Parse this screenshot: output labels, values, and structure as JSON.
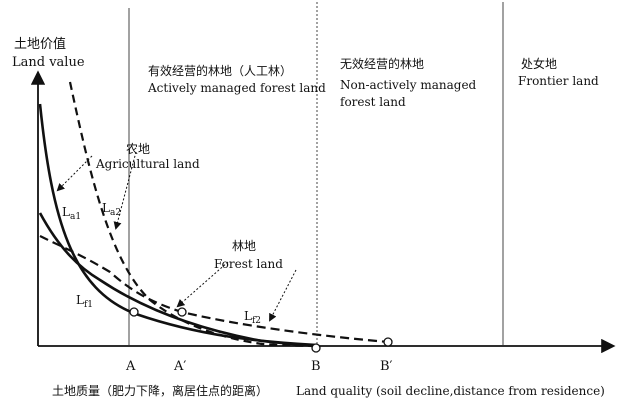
{
  "yaxis": {
    "label_cn": "土地价值",
    "label_en": "Land value"
  },
  "xaxis": {
    "label_cn": "土地质量（肥力下降，离居住点的距离）",
    "label_en": "Land quality (soil decline,distance from residence)"
  },
  "ticks": {
    "A": "A",
    "A_prime": "A′",
    "B": "B",
    "B_prime": "B′"
  },
  "zones": {
    "active": {
      "cn": "有效经营的林地（人工林）",
      "en": "Actively managed forest land"
    },
    "nonactive": {
      "cn": "无效经营的林地",
      "en_line1": "Non-actively managed",
      "en_line2": "forest land"
    },
    "frontier": {
      "cn": "处女地",
      "en": "Frontier land"
    }
  },
  "annotations": {
    "agri_cn": "农地",
    "agri_en": "Agricultural land",
    "forest_cn": "林地",
    "forest_en": "Forest land"
  },
  "curve_labels": {
    "La1": {
      "main": "L",
      "sub": "a1"
    },
    "La2": {
      "main": "L",
      "sub": "a2"
    },
    "Lf1": {
      "main": "L",
      "sub": "f1"
    },
    "Lf2": {
      "main": "L",
      "sub": "f2"
    }
  }
}
